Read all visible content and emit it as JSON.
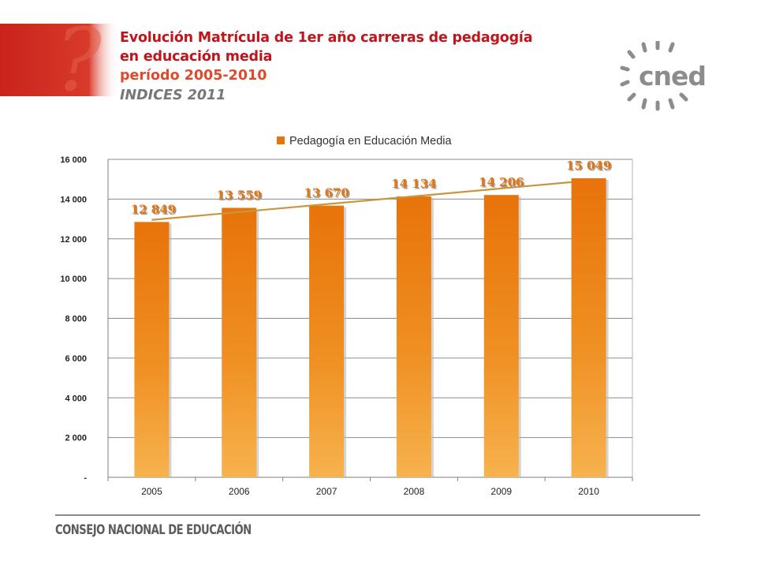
{
  "header": {
    "title_line1": "Evolución Matrícula de 1er año carreras de pedagogía",
    "title_line2": "en educación media",
    "title_line3": "período 2005-2010",
    "title_line4": "INDICES 2011"
  },
  "logo": {
    "text": "cned",
    "icon": "sunburst-logo-icon",
    "color": "#8c8c8c"
  },
  "footer": {
    "text": "CONSEJO NACIONAL DE EDUCACIÓN"
  },
  "colors": {
    "accent_red": "#c0151b",
    "bar_top": "#e8730a",
    "bar_bottom": "#f7b24e",
    "trend": "#c8963c"
  },
  "chart_data": {
    "type": "bar",
    "categories": [
      "2005",
      "2006",
      "2007",
      "2008",
      "2009",
      "2010"
    ],
    "series": [
      {
        "name": "Pedagogía en Educación Media",
        "values": [
          12849,
          13559,
          13670,
          14134,
          14206,
          15049
        ]
      }
    ],
    "data_labels": [
      "12 849",
      "13 559",
      "13 670",
      "14 134",
      "14 206",
      "15 049"
    ],
    "ylim": [
      0,
      16000
    ],
    "yticks": [
      0,
      2000,
      4000,
      6000,
      8000,
      10000,
      12000,
      14000,
      16000
    ],
    "ytick_labels": [
      "-",
      "2 000",
      "4 000",
      "6 000",
      "8 000",
      "10 000",
      "12 000",
      "14 000",
      "16 000"
    ],
    "trendline": "linear",
    "grid": true,
    "legend_position": "top"
  }
}
